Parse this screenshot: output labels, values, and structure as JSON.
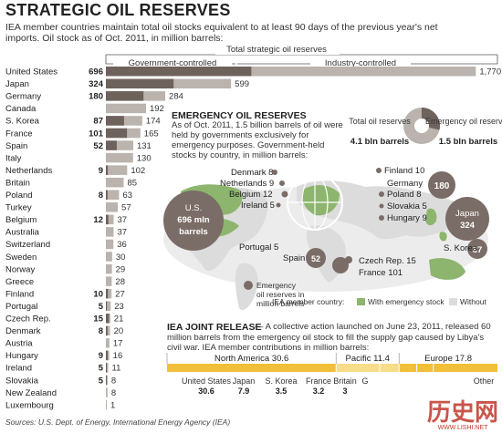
{
  "title": "STRATEGIC OIL RESERVES",
  "subtitle": "IEA member countries maintain total oil stocks equivalent to at least 90 days of the previous year's net imports. Oil stock as of Oct. 2011, in million barrels:",
  "header": {
    "total": "Total strategic oil reserves",
    "government": "Government-controlled",
    "industry": "Industry-controlled"
  },
  "colors": {
    "government": "#6e625d",
    "industry": "#bab3ae",
    "emergency_stock": "#8db56e",
    "without": "#dcdcdc",
    "bubble": "#7a6c66",
    "joint": "#f2bf3a",
    "joint_light": "#f7dc8a"
  },
  "chart_data": {
    "type": "bar",
    "countries": [
      {
        "name": "United States",
        "gov": 696,
        "total": 1770
      },
      {
        "name": "Japan",
        "gov": 324,
        "total": 599
      },
      {
        "name": "Germany",
        "gov": 180,
        "total": 284
      },
      {
        "name": "Canada",
        "gov": null,
        "total": 192
      },
      {
        "name": "S. Korea",
        "gov": 87,
        "total": 174
      },
      {
        "name": "France",
        "gov": 101,
        "total": 165
      },
      {
        "name": "Spain",
        "gov": 52,
        "total": 131
      },
      {
        "name": "Italy",
        "gov": null,
        "total": 130
      },
      {
        "name": "Netherlands",
        "gov": 9,
        "total": 102
      },
      {
        "name": "Britain",
        "gov": null,
        "total": 85
      },
      {
        "name": "Poland",
        "gov": 8,
        "total": 63
      },
      {
        "name": "Turkey",
        "gov": null,
        "total": 57
      },
      {
        "name": "Belgium",
        "gov": 12,
        "total": 37
      },
      {
        "name": "Australia",
        "gov": null,
        "total": 37
      },
      {
        "name": "Switzerland",
        "gov": null,
        "total": 36
      },
      {
        "name": "Sweden",
        "gov": null,
        "total": 30
      },
      {
        "name": "Norway",
        "gov": null,
        "total": 29
      },
      {
        "name": "Greece",
        "gov": null,
        "total": 28
      },
      {
        "name": "Finland",
        "gov": 10,
        "total": 27
      },
      {
        "name": "Portugal",
        "gov": 5,
        "total": 23
      },
      {
        "name": "Czech Rep.",
        "gov": 15,
        "total": 21
      },
      {
        "name": "Denmark",
        "gov": 8,
        "total": 20
      },
      {
        "name": "Austria",
        "gov": null,
        "total": 17
      },
      {
        "name": "Hungary",
        "gov": 9,
        "total": 16
      },
      {
        "name": "Ireland",
        "gov": 5,
        "total": 11
      },
      {
        "name": "Slovakia",
        "gov": 5,
        "total": 8
      },
      {
        "name": "New Zealand",
        "gov": null,
        "total": 8
      },
      {
        "name": "Luxembourg",
        "gov": null,
        "total": 1
      }
    ],
    "total_oil_reserves_bln": 4.1,
    "emergency_reserves_bln": 1.5,
    "joint_release": {
      "regions": [
        {
          "name": "North America",
          "value": 30.6
        },
        {
          "name": "Pacific",
          "value": 11.4
        },
        {
          "name": "Europe",
          "value": 17.8
        }
      ],
      "countries": [
        {
          "name": "United States",
          "value": "30.6"
        },
        {
          "name": "Japan",
          "value": "7.9"
        },
        {
          "name": "S. Korea",
          "value": "3.5"
        },
        {
          "name": "France",
          "value": "3.2"
        },
        {
          "name": "Britain",
          "value": "3"
        },
        {
          "name": "G",
          "value": ""
        },
        {
          "name": "Other",
          "value": ""
        }
      ]
    }
  },
  "emergency": {
    "title": "EMERGENCY OIL RESERVES",
    "text": "As of Oct. 2011, 1.5 billion barrels of oil were held by governments exclusively for emergency purposes. Government-held stocks by country, in million barrels:",
    "total_label": "Total oil reserves",
    "total_value": "4.1 bln barrels",
    "emergency_label": "Emergency oil reserves",
    "emergency_value": "1.5 bln barrels",
    "us_line1": "U.S.",
    "us_line2": "696 mln",
    "us_line3": "barrels",
    "japan_line1": "Japan",
    "japan_line2": "324",
    "germany_value": "180",
    "korea_value": "87",
    "labels": {
      "denmark": "Denmark 8",
      "netherlands": "Netherlands 9",
      "belgium": "Belgium 12",
      "ireland": "Ireland 5",
      "finland": "Finland 10",
      "germany": "Germany",
      "poland": "Poland 8",
      "slovakia": "Slovakia 5",
      "hungary": "Hungary 9",
      "portugal": "Portugal 5",
      "spain": "Spain",
      "spain_value": "52",
      "czech": "Czech Rep. 15",
      "france": "France 101",
      "korea": "S. Korea"
    },
    "legend_bubble_1": "Emergency",
    "legend_bubble_2": "oil reserves in",
    "legend_bubble_3": "million barrels",
    "legend_member": "IEA member country:",
    "legend_with": "With emergency stock",
    "legend_without": "Without"
  },
  "joint": {
    "title": "IEA JOINT RELEASE",
    "text": "— A collective action launched on June 23, 2011, released 60 million barrels from the emergency oil stock to fill the supply gap caused by Libya's civil war. IEA member contributions in million barrels:"
  },
  "source": "Sources: U.S. Dept. of Energy, International Energy Agency (IEA)",
  "watermark": {
    "cn": "历史网",
    "url": "WWW.LISHI.NET"
  }
}
